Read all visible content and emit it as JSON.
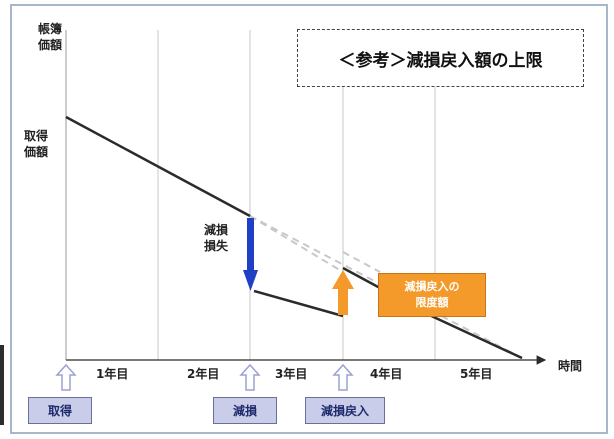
{
  "diagram": {
    "title": "＜参考＞減損戻入額の上限",
    "axis_y_label": "帳簿\n価額",
    "axis_x_label": "時間",
    "acquisition_value_label": "取得\n価額",
    "impairment_loss_label": "減損\n損失",
    "reversal_limit_label_line1": "減損戻入の",
    "reversal_limit_label_line2": "限度額",
    "years": [
      "1年目",
      "2年目",
      "3年目",
      "4年目",
      "5年目"
    ],
    "events": [
      {
        "label": "取得"
      },
      {
        "label": "減損"
      },
      {
        "label": "減損戻入"
      }
    ]
  },
  "colors": {
    "frame": "#a7b7c9",
    "value_line": "#2b2b2b",
    "limit_line": "#c8c8c8",
    "loss_arrow": "#1f3fc4",
    "reversal_arrow": "#f39a2a",
    "event_box": "#c9cdea",
    "event_arrow": "#a9aed8"
  }
}
